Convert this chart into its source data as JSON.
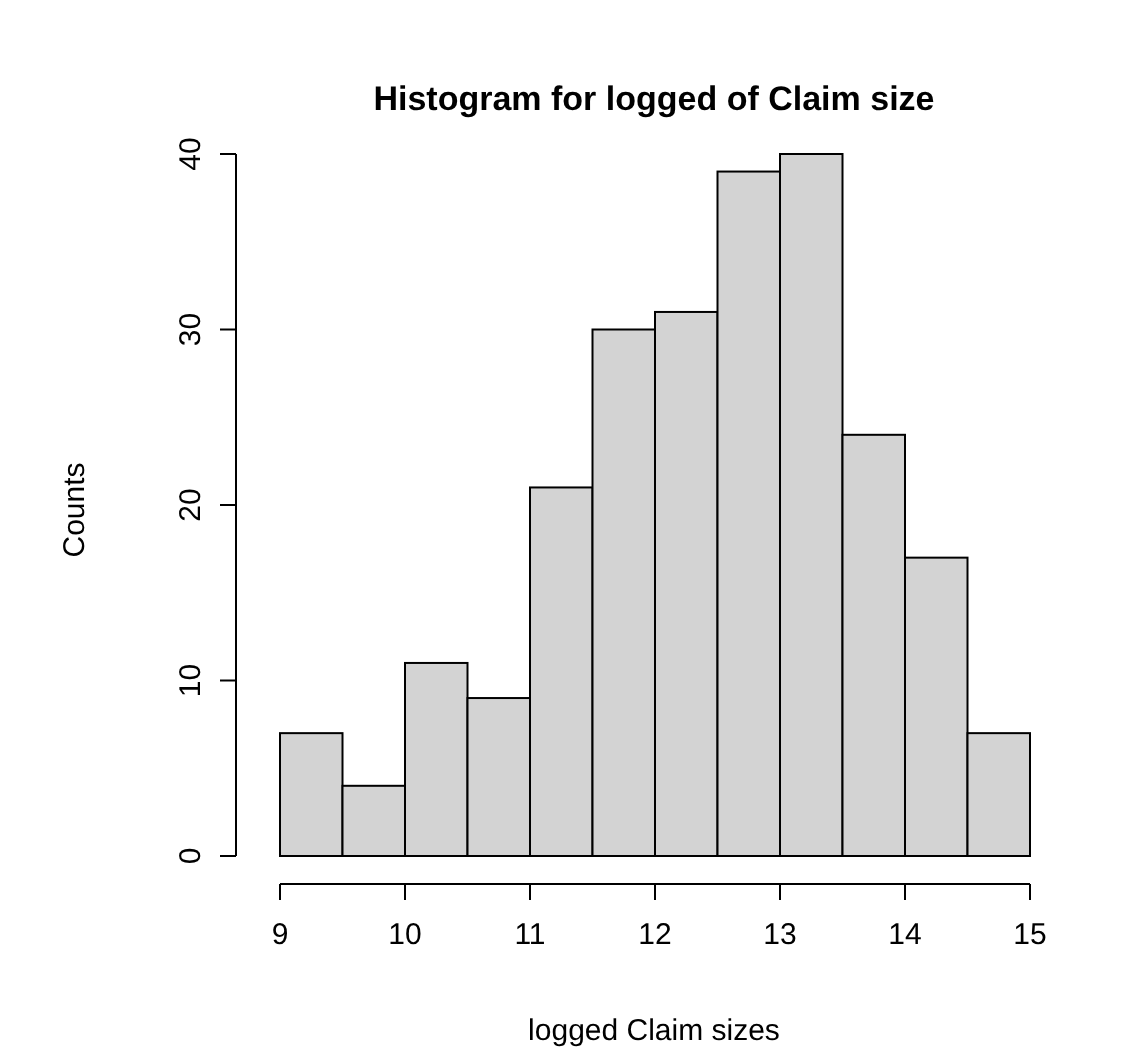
{
  "chart_data": {
    "type": "histogram",
    "title": "Histogram for logged of Claim size",
    "xlabel": "logged Claim sizes",
    "ylabel": "Counts",
    "bins": [
      9,
      9.5,
      10,
      10.5,
      11,
      11.5,
      12,
      12.5,
      13,
      13.5,
      14,
      14.5,
      15
    ],
    "values": [
      7,
      4,
      11,
      9,
      21,
      30,
      31,
      39,
      40,
      24,
      17,
      7
    ],
    "color": "#d3d3d3",
    "xlim": [
      9,
      15
    ],
    "xticks": [
      9,
      10,
      11,
      12,
      13,
      14,
      15
    ],
    "ylim": [
      0,
      40
    ],
    "yticks": [
      0,
      10,
      20,
      30,
      40
    ],
    "grid": false
  }
}
